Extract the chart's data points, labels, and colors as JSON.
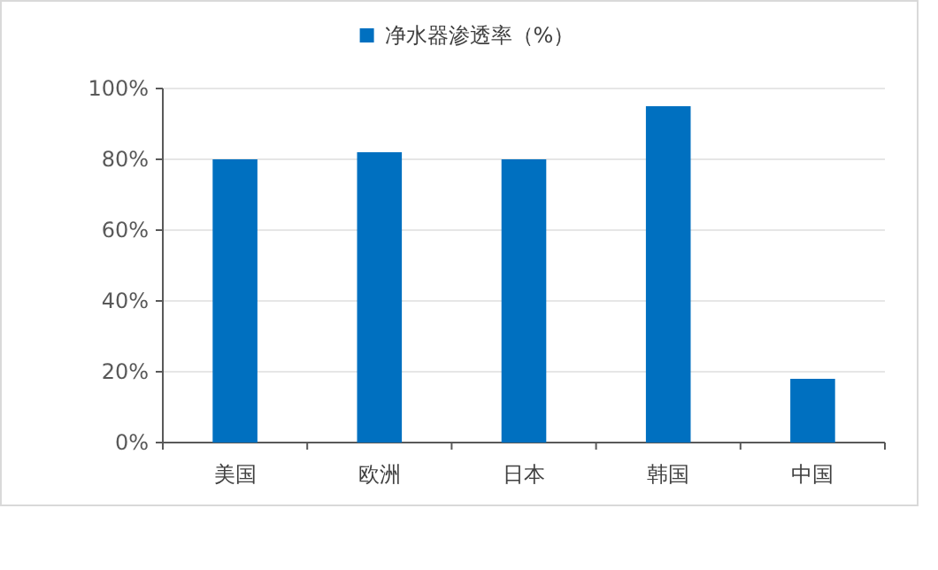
{
  "chart_data": {
    "type": "bar",
    "categories": [
      "美国",
      "欧洲",
      "日本",
      "韩国",
      "中国"
    ],
    "series": [
      {
        "name": "净水器渗透率（%）",
        "color": "#0070c0",
        "values": [
          80,
          82,
          80,
          95,
          18
        ]
      }
    ],
    "ylim": [
      0,
      100
    ],
    "yticks": [
      {
        "value": 0,
        "label": "0%"
      },
      {
        "value": 20,
        "label": "20%"
      },
      {
        "value": 40,
        "label": "40%"
      },
      {
        "value": 60,
        "label": "60%"
      },
      {
        "value": 80,
        "label": "80%"
      },
      {
        "value": 100,
        "label": "100%"
      }
    ],
    "grid": "y",
    "legend": "top"
  }
}
